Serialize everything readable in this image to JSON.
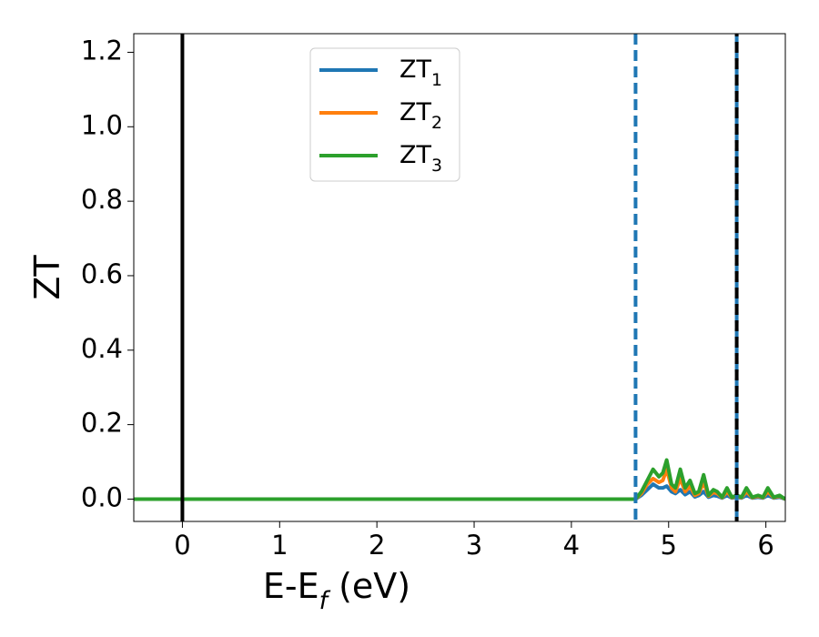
{
  "chart_data": {
    "type": "line",
    "xlabel": "E-E$_f$ (eV)",
    "ylabel": "ZT",
    "x": [
      -0.5,
      4.6,
      4.66,
      4.72,
      4.78,
      4.84,
      4.9,
      4.94,
      4.98,
      5.03,
      5.07,
      5.12,
      5.17,
      5.22,
      5.27,
      5.31,
      5.36,
      5.41,
      5.46,
      5.5,
      5.55,
      5.6,
      5.65,
      5.7,
      5.75,
      5.8,
      5.86,
      5.92,
      5.97,
      6.02,
      6.08,
      6.14,
      6.2
    ],
    "series": [
      {
        "name": "ZT$_1$",
        "color": "#1f77b4",
        "values": [
          0,
          0,
          0,
          0.01,
          0.025,
          0.04,
          0.03,
          0.03,
          0.035,
          0.02,
          0.015,
          0.025,
          0.012,
          0.02,
          0.006,
          0.01,
          0.02,
          0.005,
          0.01,
          0.008,
          0.003,
          0.01,
          0.003,
          0.005,
          0.003,
          0.01,
          0.003,
          0.005,
          0.003,
          0.01,
          0.003,
          0.005,
          0
        ]
      },
      {
        "name": "ZT$_2$",
        "color": "#ff7f0e",
        "values": [
          0,
          0,
          0,
          0.015,
          0.04,
          0.055,
          0.045,
          0.05,
          0.08,
          0.03,
          0.02,
          0.055,
          0.02,
          0.035,
          0.01,
          0.015,
          0.045,
          0.008,
          0.018,
          0.015,
          0.004,
          0.02,
          0.004,
          0.008,
          0.004,
          0.02,
          0.004,
          0.008,
          0.004,
          0.02,
          0.004,
          0.008,
          0
        ]
      },
      {
        "name": "ZT$_3$",
        "color": "#2ca02c",
        "values": [
          0,
          0,
          0,
          0.02,
          0.05,
          0.08,
          0.06,
          0.07,
          0.105,
          0.04,
          0.03,
          0.08,
          0.03,
          0.05,
          0.015,
          0.02,
          0.065,
          0.01,
          0.025,
          0.02,
          0.005,
          0.03,
          0.005,
          0.01,
          0.005,
          0.03,
          0.005,
          0.01,
          0.005,
          0.03,
          0.005,
          0.01,
          0
        ]
      }
    ],
    "vlines": [
      {
        "x": 0,
        "color": "#000000",
        "style": "solid"
      },
      {
        "x": 4.66,
        "color": "#1f77b4",
        "style": "dashed"
      },
      {
        "x": 5.7,
        "color": "#1f77b4",
        "style": "dashed"
      },
      {
        "x": 5.7,
        "color": "#000000",
        "style": "dashed"
      }
    ],
    "xlim": [
      -0.5,
      6.2
    ],
    "xticks": [
      0,
      1,
      2,
      3,
      4,
      5,
      6
    ],
    "ylim": [
      -0.06,
      1.25
    ],
    "yticks": [
      {
        "value": 0,
        "label": "0.0"
      },
      {
        "value": 0.2,
        "label": "0.2"
      },
      {
        "value": 0.4,
        "label": "0.4"
      },
      {
        "value": 0.6,
        "label": "0.6"
      },
      {
        "value": 0.8,
        "label": "0.8"
      },
      {
        "value": 1.0,
        "label": "1.0"
      },
      {
        "value": 1.2,
        "label": "1.2"
      }
    ],
    "grid": false,
    "legend": "upper center"
  }
}
